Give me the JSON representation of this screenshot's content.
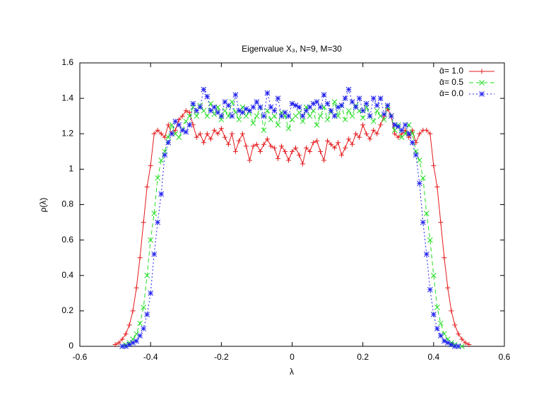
{
  "chart_data": {
    "type": "line",
    "title": "Eigenvalue X₃, N=9, M=30",
    "xlabel": "λ",
    "ylabel": "ρ(λ)",
    "xlim": [
      -0.6,
      0.6
    ],
    "xticks": [
      -0.6,
      -0.4,
      -0.2,
      0,
      0.2,
      0.4,
      0.6
    ],
    "ylim": [
      0,
      1.6
    ],
    "yticks": [
      0,
      0.2,
      0.4,
      0.6,
      0.8,
      1,
      1.2,
      1.4,
      1.6
    ],
    "legend": "top-right",
    "grid": false,
    "x": [
      -0.5,
      -0.49,
      -0.48,
      -0.47,
      -0.46,
      -0.45,
      -0.44,
      -0.43,
      -0.42,
      -0.41,
      -0.4,
      -0.39,
      -0.38,
      -0.37,
      -0.36,
      -0.35,
      -0.34,
      -0.33,
      -0.32,
      -0.31,
      -0.3,
      -0.29,
      -0.28,
      -0.27,
      -0.26,
      -0.25,
      -0.24,
      -0.23,
      -0.22,
      -0.21,
      -0.2,
      -0.19,
      -0.18,
      -0.17,
      -0.16,
      -0.15,
      -0.14,
      -0.13,
      -0.12,
      -0.11,
      -0.1,
      -0.09,
      -0.08,
      -0.07,
      -0.06,
      -0.05,
      -0.04,
      -0.03,
      -0.02,
      -0.01,
      0,
      0.01,
      0.02,
      0.03,
      0.04,
      0.05,
      0.06,
      0.07,
      0.08,
      0.09,
      0.1,
      0.11,
      0.12,
      0.13,
      0.14,
      0.15,
      0.16,
      0.17,
      0.18,
      0.19,
      0.2,
      0.21,
      0.22,
      0.23,
      0.24,
      0.25,
      0.26,
      0.27,
      0.28,
      0.29,
      0.3,
      0.31,
      0.32,
      0.33,
      0.34,
      0.35,
      0.36,
      0.37,
      0.38,
      0.39,
      0.4,
      0.41,
      0.42,
      0.43,
      0.44,
      0.45,
      0.46,
      0.47,
      0.48,
      0.49,
      0.5
    ],
    "series": [
      {
        "name": "ᾱ= 1.0",
        "color": "#e41a1c",
        "marker": "plus",
        "dash": "none",
        "values": [
          0.01,
          0.02,
          0.04,
          0.07,
          0.12,
          0.2,
          0.33,
          0.5,
          0.7,
          0.9,
          1.02,
          1.2,
          1.22,
          1.2,
          1.18,
          1.25,
          1.2,
          1.22,
          1.28,
          1.3,
          1.33,
          1.32,
          1.25,
          1.18,
          1.2,
          1.15,
          1.2,
          1.17,
          1.22,
          1.2,
          1.23,
          1.18,
          1.14,
          1.2,
          1.1,
          1.16,
          1.2,
          1.13,
          1.05,
          1.13,
          1.14,
          1.1,
          1.14,
          1.17,
          1.13,
          1.12,
          1.06,
          1.13,
          1.1,
          1.05,
          1.1,
          1.12,
          1.08,
          1.03,
          1.12,
          1.1,
          1.15,
          1.16,
          1.1,
          1.05,
          1.16,
          1.14,
          1.12,
          1.15,
          1.08,
          1.12,
          1.17,
          1.14,
          1.2,
          1.18,
          1.25,
          1.2,
          1.17,
          1.22,
          1.2,
          1.25,
          1.3,
          1.34,
          1.3,
          1.2,
          1.18,
          1.2,
          1.22,
          1.18,
          1.22,
          1.15,
          1.2,
          1.22,
          1.22,
          1.2,
          1.02,
          0.9,
          0.7,
          0.5,
          0.33,
          0.2,
          0.12,
          0.07,
          0.04,
          0.02,
          0.01
        ]
      },
      {
        "name": "ᾱ= 0.5",
        "color": "#22dd22",
        "marker": "cross",
        "dash": "6 4",
        "values": [
          null,
          null,
          0,
          0.01,
          0.02,
          0.04,
          0.07,
          0.13,
          0.22,
          0.4,
          0.6,
          0.75,
          0.95,
          1.05,
          1.1,
          1.18,
          1.25,
          1.2,
          1.18,
          1.22,
          1.27,
          1.3,
          1.35,
          1.3,
          1.36,
          1.33,
          1.3,
          1.37,
          1.31,
          1.35,
          1.28,
          1.33,
          1.3,
          1.38,
          1.32,
          1.28,
          1.35,
          1.3,
          1.33,
          1.26,
          1.3,
          1.35,
          1.22,
          1.33,
          1.28,
          1.3,
          1.25,
          1.32,
          1.3,
          1.23,
          1.28,
          1.3,
          1.32,
          1.27,
          1.35,
          1.3,
          1.33,
          1.25,
          1.3,
          1.35,
          1.28,
          1.32,
          1.38,
          1.3,
          1.36,
          1.28,
          1.33,
          1.3,
          1.36,
          1.33,
          1.29,
          1.35,
          1.3,
          1.27,
          1.33,
          1.3,
          1.28,
          1.35,
          1.3,
          1.22,
          1.25,
          1.18,
          1.2,
          1.25,
          1.2,
          1.1,
          1.05,
          0.95,
          0.75,
          0.6,
          0.4,
          0.22,
          0.13,
          0.07,
          0.04,
          0.02,
          0.01,
          0,
          0,
          null,
          null
        ]
      },
      {
        "name": "ᾱ= 0.0",
        "color": "#2222ee",
        "marker": "star",
        "dash": "2 3",
        "values": [
          null,
          null,
          0,
          0,
          0.01,
          0.02,
          0.03,
          0.06,
          0.1,
          0.18,
          0.3,
          0.52,
          0.7,
          0.86,
          1.08,
          1.15,
          1.2,
          1.27,
          1.25,
          1.22,
          1.21,
          1.25,
          1.37,
          1.33,
          1.35,
          1.45,
          1.41,
          1.33,
          1.35,
          1.32,
          1.3,
          1.38,
          1.36,
          1.3,
          1.42,
          1.33,
          1.32,
          1.34,
          1.33,
          1.35,
          1.38,
          1.35,
          1.3,
          1.43,
          1.35,
          1.33,
          1.4,
          1.3,
          1.32,
          1.3,
          1.37,
          1.36,
          1.35,
          1.3,
          1.33,
          1.35,
          1.37,
          1.38,
          1.35,
          1.42,
          1.37,
          1.33,
          1.3,
          1.35,
          1.36,
          1.4,
          1.45,
          1.38,
          1.35,
          1.4,
          1.33,
          1.37,
          1.3,
          1.4,
          1.36,
          1.4,
          1.31,
          1.36,
          1.3,
          1.25,
          1.24,
          1.22,
          1.25,
          1.2,
          1.15,
          1.08,
          0.92,
          0.7,
          0.52,
          0.32,
          0.18,
          0.1,
          0.06,
          0.03,
          0.02,
          0.01,
          0,
          0,
          null,
          null,
          null
        ]
      }
    ]
  }
}
